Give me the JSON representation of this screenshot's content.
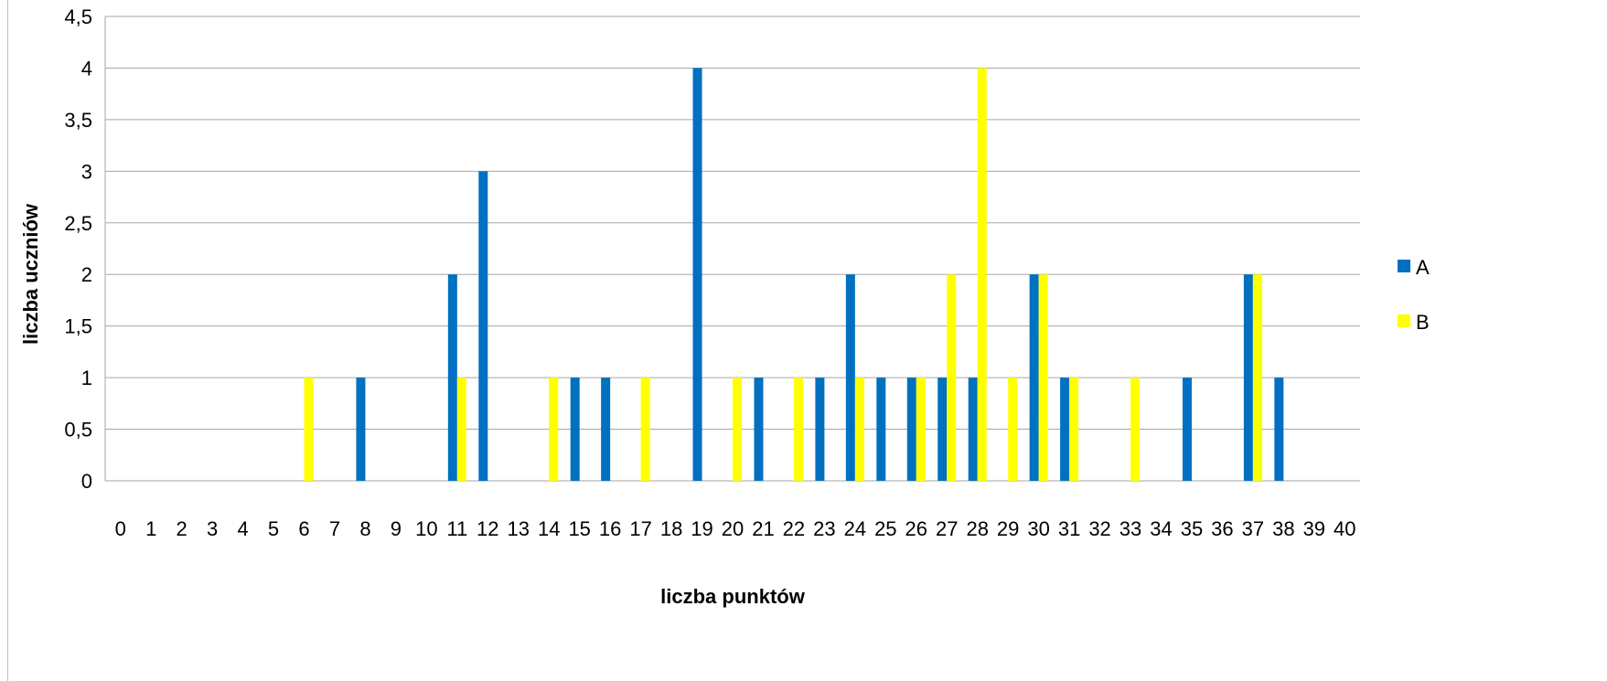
{
  "colors": {
    "A": "#0070C0",
    "B": "#FFFF00",
    "grid": "#a6a6a6"
  },
  "chart_data": {
    "type": "bar",
    "title": "",
    "xlabel": "liczba punktów",
    "ylabel": "liczba uczniów",
    "categories": [
      "0",
      "1",
      "2",
      "3",
      "4",
      "5",
      "6",
      "7",
      "8",
      "9",
      "10",
      "11",
      "12",
      "13",
      "14",
      "15",
      "16",
      "17",
      "18",
      "19",
      "20",
      "21",
      "22",
      "23",
      "24",
      "25",
      "26",
      "27",
      "28",
      "29",
      "30",
      "31",
      "32",
      "33",
      "34",
      "35",
      "36",
      "37",
      "38",
      "39",
      "40"
    ],
    "series": [
      {
        "name": "A",
        "values": [
          0,
          0,
          0,
          0,
          0,
          0,
          0,
          0,
          1,
          0,
          0,
          2,
          3,
          0,
          0,
          1,
          1,
          0,
          0,
          4,
          0,
          1,
          0,
          1,
          2,
          1,
          1,
          1,
          1,
          0,
          2,
          1,
          0,
          0,
          0,
          1,
          0,
          2,
          1,
          0,
          0
        ]
      },
      {
        "name": "B",
        "values": [
          0,
          0,
          0,
          0,
          0,
          0,
          1,
          0,
          0,
          0,
          0,
          1,
          0,
          0,
          1,
          0,
          0,
          1,
          0,
          0,
          1,
          0,
          1,
          0,
          1,
          0,
          1,
          2,
          4,
          1,
          2,
          1,
          0,
          1,
          0,
          0,
          0,
          2,
          0,
          0,
          0
        ]
      }
    ],
    "ylim": [
      0,
      4.5
    ],
    "yticks": [
      "0",
      "0,5",
      "1",
      "1,5",
      "2",
      "2,5",
      "3",
      "3,5",
      "4",
      "4,5"
    ],
    "grid": true,
    "legend": "right"
  }
}
